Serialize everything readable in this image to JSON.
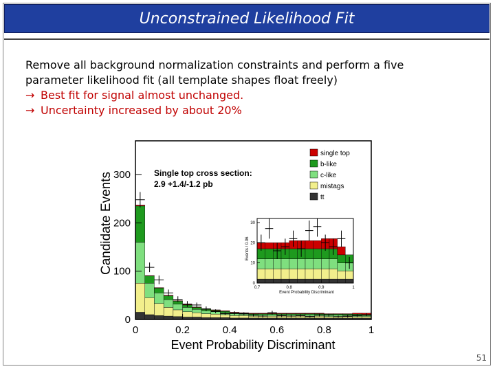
{
  "slide": {
    "title": "Unconstrained Likelihood Fit",
    "line1": "Remove all background normalization constraints and perform a five",
    "line2": "parameter likelihood fit (all template shapes float freely)",
    "bullet_arrow": "→",
    "bullet1": "Best fit for signal almost unchanged.",
    "bullet2": "Uncertainty increased by about 20%",
    "page_number": "51"
  },
  "chart_data": {
    "type": "bar",
    "stacked": true,
    "xlabel": "Event Probability Discriminant",
    "ylabel": "Candidate Events",
    "xlim": [
      0,
      1
    ],
    "ylim": [
      0,
      370
    ],
    "xticks": [
      "0",
      "0.2",
      "0.4",
      "0.6",
      "0.8",
      "1"
    ],
    "yticks": [
      "0",
      "100",
      "200",
      "300"
    ],
    "annotation_line1": "Single top cross section:",
    "annotation_line2": "2.9 +1.4/-1.2 pb",
    "bin_edges": [
      0,
      0.04,
      0.08,
      0.12,
      0.16,
      0.2,
      0.24,
      0.28,
      0.32,
      0.36,
      0.4,
      0.44,
      0.48,
      0.52,
      0.56,
      0.6,
      0.64,
      0.68,
      0.72,
      0.76,
      0.8,
      0.84,
      0.88,
      0.92,
      0.96,
      1.0
    ],
    "series": [
      {
        "name": "tt",
        "color": "#333333",
        "values": [
          15,
          10,
          8,
          7,
          6,
          5,
          5,
          4,
          4,
          4,
          3,
          3,
          3,
          3,
          3,
          3,
          3,
          3,
          3,
          3,
          3,
          3,
          3,
          3,
          3
        ]
      },
      {
        "name": "mistags",
        "color": "#f2ef8c",
        "values": [
          60,
          35,
          25,
          18,
          14,
          11,
          9,
          8,
          7,
          6,
          5,
          5,
          4,
          4,
          4,
          4,
          4,
          4,
          4,
          4,
          3,
          3,
          3,
          3,
          3
        ]
      },
      {
        "name": "c-like",
        "color": "#7fdf7f",
        "values": [
          85,
          30,
          22,
          16,
          12,
          9,
          7,
          6,
          5,
          4,
          4,
          3,
          3,
          3,
          3,
          3,
          3,
          3,
          3,
          3,
          3,
          3,
          3,
          3,
          2
        ]
      },
      {
        "name": "b-like",
        "color": "#1e9a1e",
        "values": [
          75,
          15,
          10,
          8,
          6,
          5,
          4,
          3,
          3,
          3,
          2,
          2,
          2,
          2,
          2,
          2,
          2,
          2,
          2,
          2,
          2,
          2,
          2,
          2,
          2
        ]
      },
      {
        "name": "single top",
        "color": "#cc0000",
        "values": [
          2,
          1,
          1,
          1,
          1,
          1,
          1,
          1,
          1,
          1,
          1,
          1,
          1,
          1,
          1,
          1,
          1,
          1,
          1,
          1,
          1,
          1,
          1,
          2,
          3
        ]
      }
    ],
    "data_points": {
      "values": [
        248,
        108,
        82,
        55,
        42,
        32,
        30,
        22,
        17,
        12,
        13,
        12,
        9,
        7,
        14,
        8,
        7,
        8,
        6,
        9,
        9,
        6,
        7,
        8,
        10
      ],
      "errors": [
        16,
        10,
        9,
        7,
        6,
        6,
        5,
        5,
        4,
        3,
        4,
        3,
        3,
        3,
        4,
        3,
        3,
        3,
        2,
        3,
        3,
        2,
        3,
        3,
        3
      ]
    },
    "inset": {
      "xlim": [
        0.7,
        1.0
      ],
      "ylim": [
        0,
        32
      ],
      "ylabel": "Events / 0.06",
      "xlabel": "Event Probability Discriminant",
      "xticks": [
        "0.7",
        "0.8",
        "0.9",
        "1"
      ],
      "yticks": [
        "0",
        "10",
        "20",
        "30"
      ],
      "bin_edges": [
        0.7,
        0.725,
        0.75,
        0.775,
        0.8,
        0.825,
        0.85,
        0.875,
        0.9,
        0.925,
        0.95,
        0.975,
        1.0
      ],
      "series": [
        {
          "name": "tt",
          "values": [
            2,
            2,
            2,
            2,
            2,
            2,
            2,
            2,
            2,
            2,
            2,
            2
          ]
        },
        {
          "name": "mistags",
          "values": [
            5,
            5,
            5,
            5,
            5,
            5,
            5,
            5,
            5,
            5,
            4,
            4
          ]
        },
        {
          "name": "c-like",
          "values": [
            5,
            5,
            5,
            5,
            5,
            5,
            5,
            5,
            5,
            5,
            4,
            4
          ]
        },
        {
          "name": "b-like",
          "values": [
            5,
            5,
            5,
            5,
            5,
            5,
            5,
            5,
            5,
            5,
            4,
            4
          ]
        },
        {
          "name": "single top",
          "values": [
            3,
            3,
            3,
            3,
            4,
            4,
            4,
            4,
            5,
            5,
            4,
            0
          ]
        }
      ],
      "data_points": {
        "values": [
          20,
          27,
          16,
          18,
          22,
          17,
          26,
          28,
          20,
          18,
          22,
          10
        ],
        "errors": [
          4,
          5,
          4,
          4,
          4,
          4,
          5,
          5,
          4,
          4,
          4,
          3
        ]
      }
    }
  }
}
